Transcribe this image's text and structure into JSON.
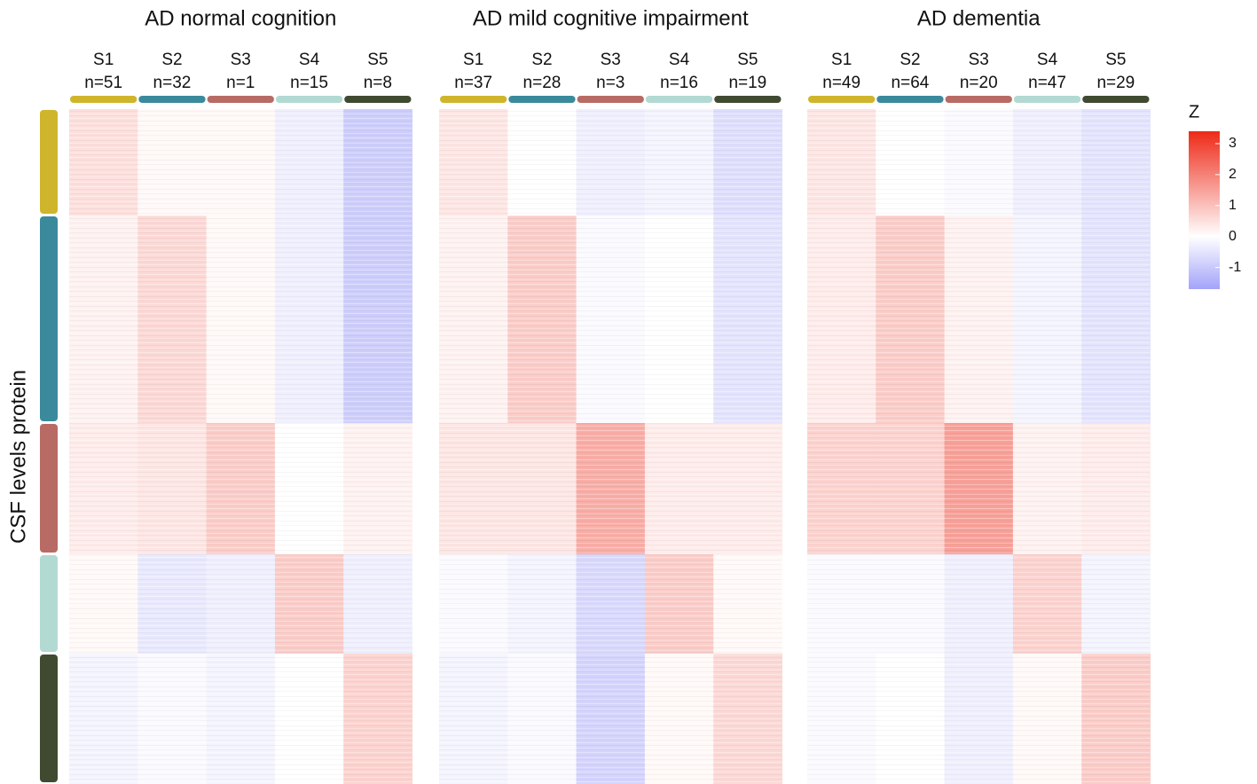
{
  "chart_data": {
    "type": "heatmap",
    "y_label": "CSF levels protein",
    "subtype_colors": [
      "#cfb52b",
      "#3a8a9c",
      "#b86b64",
      "#b3d9d3",
      "#404a30"
    ],
    "panels": [
      {
        "title": "AD normal cognition",
        "columns": [
          "S1",
          "S2",
          "S3",
          "S4",
          "S5"
        ],
        "n_labels": [
          "n=51",
          "n=32",
          "n=1",
          "n=15",
          "n=8"
        ],
        "values": [
          [
            0.5,
            0.1,
            0.1,
            -0.3,
            -0.9
          ],
          [
            0.2,
            0.6,
            0.1,
            -0.3,
            -0.9
          ],
          [
            0.3,
            0.4,
            0.8,
            0.0,
            0.2
          ],
          [
            0.1,
            -0.4,
            -0.3,
            0.8,
            -0.3
          ],
          [
            -0.2,
            -0.1,
            -0.2,
            0.0,
            0.7
          ]
        ]
      },
      {
        "title": "AD mild cognitive impairment",
        "columns": [
          "S1",
          "S2",
          "S3",
          "S4",
          "S5"
        ],
        "n_labels": [
          "n=37",
          "n=28",
          "n=3",
          "n=16",
          "n=19"
        ],
        "values": [
          [
            0.4,
            0.0,
            -0.3,
            -0.2,
            -0.6
          ],
          [
            0.2,
            0.8,
            -0.1,
            0.0,
            -0.5
          ],
          [
            0.4,
            0.4,
            1.3,
            0.3,
            0.3
          ],
          [
            -0.1,
            -0.2,
            -0.7,
            0.8,
            0.1
          ],
          [
            -0.2,
            -0.1,
            -0.8,
            0.1,
            0.6
          ]
        ]
      },
      {
        "title": "AD dementia",
        "columns": [
          "S1",
          "S2",
          "S3",
          "S4",
          "S5"
        ],
        "n_labels": [
          "n=49",
          "n=64",
          "n=20",
          "n=47",
          "n=29"
        ],
        "values": [
          [
            0.4,
            0.0,
            -0.1,
            -0.3,
            -0.5
          ],
          [
            0.3,
            0.8,
            0.2,
            -0.2,
            -0.5
          ],
          [
            0.7,
            0.7,
            1.5,
            0.2,
            0.3
          ],
          [
            -0.1,
            -0.1,
            -0.3,
            0.7,
            -0.2
          ],
          [
            -0.1,
            0.0,
            -0.3,
            0.1,
            0.8
          ]
        ]
      }
    ],
    "colorbar": {
      "title": "Z",
      "lim": [
        -1.7,
        3.4
      ],
      "ticks": [
        -1,
        0,
        1,
        2,
        3
      ],
      "colors": {
        "low": "#a3a3fa",
        "mid": "#ffffff",
        "high": "#ee2a18"
      }
    }
  }
}
